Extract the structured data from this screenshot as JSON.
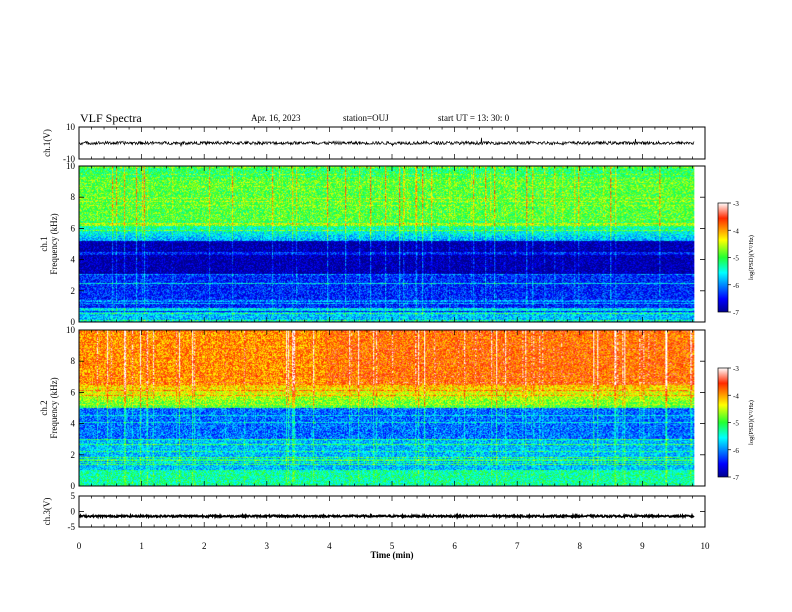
{
  "header": {
    "title": "VLF Spectra",
    "date": "Apr. 16, 2023",
    "station": "station=OUJ",
    "start": "start  UT  =   13: 30: 0"
  },
  "chart_data": [
    {
      "type": "line",
      "name": "ch1-waveform",
      "ylabel": "ch.1(V)",
      "ylim": [
        -10,
        10
      ],
      "yticks": [
        10,
        -10
      ],
      "xlim": [
        0,
        10
      ],
      "data_end_min": 9.83,
      "level": 0,
      "noise_amplitude": 1
    },
    {
      "type": "heatmap",
      "name": "ch1-spectrogram",
      "ylabel_top": "ch.1",
      "ylabel": "Frequency (kHz)",
      "ylim": [
        0,
        10
      ],
      "yticks": [
        0,
        2,
        4,
        6,
        8,
        10
      ],
      "xlim": [
        0,
        10
      ],
      "data_end_min": 9.83,
      "colorbar": {
        "label": "log(PSD)(V²/Hz)",
        "range": [
          -7,
          -3
        ],
        "ticks": [
          -3,
          -4,
          -5,
          -6,
          -7
        ]
      }
    },
    {
      "type": "heatmap",
      "name": "ch2-spectrogram",
      "ylabel_top": "ch.2",
      "ylabel": "Frequency (kHz)",
      "ylim": [
        0,
        10
      ],
      "yticks": [
        0,
        2,
        4,
        6,
        8,
        10
      ],
      "xlim": [
        0,
        10
      ],
      "data_end_min": 9.83,
      "colorbar": {
        "label": "log(PSD)(V²/Hz)",
        "range": [
          -7,
          -3
        ],
        "ticks": [
          -3,
          -4,
          -5,
          -6,
          -7
        ]
      }
    },
    {
      "type": "line",
      "name": "ch3-waveform",
      "ylabel": "ch.3(V)",
      "ylim": [
        -5,
        5
      ],
      "yticks": [
        5,
        0,
        -5
      ],
      "xlim": [
        0,
        10
      ],
      "data_end_min": 9.83,
      "level": -1.5,
      "noise_amplitude": 0.3
    }
  ],
  "xaxis": {
    "label": "Time (min)",
    "ticks": [
      0,
      1,
      2,
      3,
      4,
      5,
      6,
      7,
      8,
      9,
      10
    ]
  }
}
